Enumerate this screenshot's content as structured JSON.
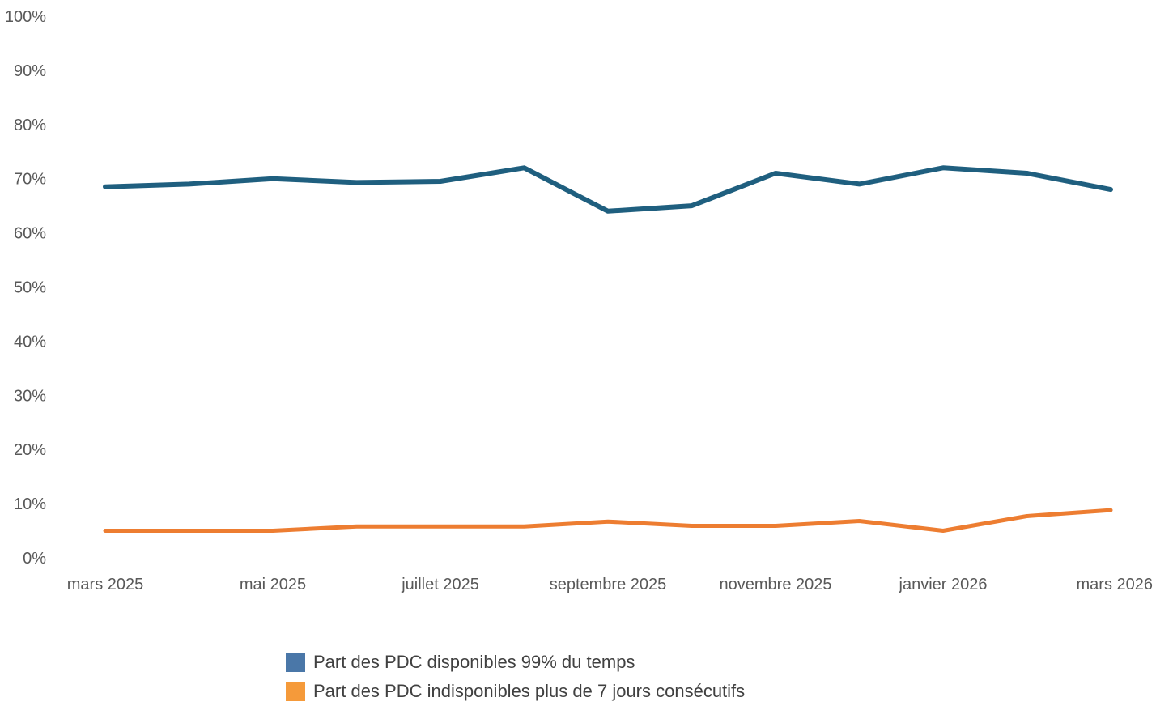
{
  "chart_data": {
    "type": "line",
    "categories": [
      "mars 2025",
      "avril 2025",
      "mai 2025",
      "juin 2025",
      "juillet 2025",
      "août 2025",
      "septembre 2025",
      "octobre 2025",
      "novembre 2025",
      "décembre 2025",
      "janvier 2026",
      "février 2026",
      "mars 2026"
    ],
    "x_tick_labels": [
      "mars 2025",
      "mai 2025",
      "juillet 2025",
      "septembre 2025",
      "novembre 2025",
      "janvier 2026",
      "mars 2026"
    ],
    "y_tick_labels": [
      "0%",
      "10%",
      "20%",
      "30%",
      "40%",
      "50%",
      "60%",
      "70%",
      "80%",
      "90%",
      "100%"
    ],
    "ylim": [
      0,
      100
    ],
    "series": [
      {
        "name": "Part des PDC disponibles 99% du temps",
        "color": "#1f5f7f",
        "legend_color": "#4a77a8",
        "values": [
          68.5,
          69,
          70,
          69.3,
          69.5,
          72,
          64,
          65,
          71,
          69,
          72,
          71,
          68
        ]
      },
      {
        "name": "Part des PDC indisponibles plus de 7 jours consécutifs",
        "color": "#ed7d31",
        "legend_color": "#f59a3a",
        "values": [
          5,
          5,
          5,
          5.8,
          5.8,
          5.8,
          6.7,
          5.9,
          5.9,
          6.8,
          5,
          7.7,
          8.8
        ]
      }
    ],
    "grid": false,
    "legend_position": "bottom"
  }
}
